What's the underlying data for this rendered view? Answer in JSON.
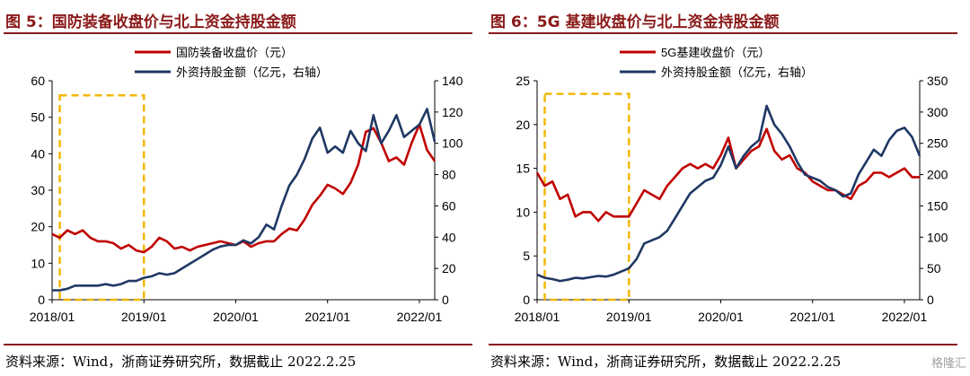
{
  "figures": [
    {
      "title": "图 5：国防装备收盘价与北上资金持股金额",
      "source": "资料来源：Wind，浙商证券研究所，数据截止 2022.2.25"
    },
    {
      "title": "图 6：5G 基建收盘价与北上资金持股金额",
      "source": "资料来源：Wind，浙商证券研究所，数据截止 2022.2.25"
    }
  ],
  "watermark": "格隆汇",
  "colors": {
    "price": "#c00000",
    "north": "#1f3864",
    "highlight": "#f2b705",
    "title": "#8b1a1a"
  },
  "chart_data": [
    {
      "type": "line",
      "x_ticks": [
        "2018/01",
        "2019/01",
        "2020/01",
        "2021/01",
        "2022/01"
      ],
      "x_range": [
        "2018/01",
        "2022/03"
      ],
      "left_axis": {
        "ylim": [
          0,
          60
        ],
        "ticks": [
          "0",
          "10",
          "20",
          "30",
          "40",
          "50",
          "60"
        ]
      },
      "right_axis": {
        "ylim": [
          0,
          140
        ],
        "ticks": [
          "0",
          "20",
          "40",
          "60",
          "80",
          "100",
          "120",
          "140"
        ]
      },
      "grid": false,
      "legend_position": "top-center",
      "highlight_box": {
        "x_from": "2018/02",
        "x_to": "2019/01",
        "y_from": 0,
        "y_to": 56,
        "axis": "left"
      },
      "series": [
        {
          "name": "国防装备收盘价（元）",
          "axis": "left",
          "color_key": "price",
          "points": [
            [
              "2018/01",
              18
            ],
            [
              "2018/02",
              17
            ],
            [
              "2018/03",
              19
            ],
            [
              "2018/04",
              18
            ],
            [
              "2018/05",
              19
            ],
            [
              "2018/06",
              17
            ],
            [
              "2018/07",
              16
            ],
            [
              "2018/08",
              16
            ],
            [
              "2018/09",
              15.5
            ],
            [
              "2018/10",
              14
            ],
            [
              "2018/11",
              15
            ],
            [
              "2018/12",
              13.5
            ],
            [
              "2019/01",
              13
            ],
            [
              "2019/02",
              14.5
            ],
            [
              "2019/03",
              17
            ],
            [
              "2019/04",
              16
            ],
            [
              "2019/05",
              14
            ],
            [
              "2019/06",
              14.5
            ],
            [
              "2019/07",
              13.5
            ],
            [
              "2019/08",
              14.5
            ],
            [
              "2019/09",
              15
            ],
            [
              "2019/10",
              15.5
            ],
            [
              "2019/11",
              16
            ],
            [
              "2019/12",
              15.5
            ],
            [
              "2020/01",
              15
            ],
            [
              "2020/02",
              16
            ],
            [
              "2020/03",
              14.5
            ],
            [
              "2020/04",
              15.5
            ],
            [
              "2020/05",
              16
            ],
            [
              "2020/06",
              16
            ],
            [
              "2020/07",
              18
            ],
            [
              "2020/08",
              19.5
            ],
            [
              "2020/09",
              19
            ],
            [
              "2020/10",
              22
            ],
            [
              "2020/11",
              26
            ],
            [
              "2020/12",
              28.5
            ],
            [
              "2021/01",
              31.5
            ],
            [
              "2021/02",
              30.5
            ],
            [
              "2021/03",
              29
            ],
            [
              "2021/04",
              32
            ],
            [
              "2021/05",
              37
            ],
            [
              "2021/06",
              46
            ],
            [
              "2021/07",
              47
            ],
            [
              "2021/08",
              43
            ],
            [
              "2021/09",
              38
            ],
            [
              "2021/10",
              39
            ],
            [
              "2021/11",
              37
            ],
            [
              "2021/12",
              43
            ],
            [
              "2022/01",
              48
            ],
            [
              "2022/02",
              41
            ],
            [
              "2022/03",
              38
            ]
          ]
        },
        {
          "name": "外资持股金额（亿元，右轴）",
          "axis": "right",
          "color_key": "north",
          "points": [
            [
              "2018/01",
              6
            ],
            [
              "2018/02",
              6
            ],
            [
              "2018/03",
              7
            ],
            [
              "2018/04",
              9
            ],
            [
              "2018/05",
              9
            ],
            [
              "2018/06",
              9
            ],
            [
              "2018/07",
              9
            ],
            [
              "2018/08",
              10
            ],
            [
              "2018/09",
              9
            ],
            [
              "2018/10",
              10
            ],
            [
              "2018/11",
              12
            ],
            [
              "2018/12",
              12
            ],
            [
              "2019/01",
              14
            ],
            [
              "2019/02",
              15
            ],
            [
              "2019/03",
              17
            ],
            [
              "2019/04",
              16
            ],
            [
              "2019/05",
              17
            ],
            [
              "2019/06",
              20
            ],
            [
              "2019/07",
              23
            ],
            [
              "2019/08",
              26
            ],
            [
              "2019/09",
              29
            ],
            [
              "2019/10",
              32
            ],
            [
              "2019/11",
              34
            ],
            [
              "2019/12",
              35
            ],
            [
              "2020/01",
              35
            ],
            [
              "2020/02",
              38
            ],
            [
              "2020/03",
              36
            ],
            [
              "2020/04",
              40
            ],
            [
              "2020/05",
              48
            ],
            [
              "2020/06",
              45
            ],
            [
              "2020/07",
              60
            ],
            [
              "2020/08",
              73
            ],
            [
              "2020/09",
              80
            ],
            [
              "2020/10",
              90
            ],
            [
              "2020/11",
              103
            ],
            [
              "2020/12",
              110
            ],
            [
              "2021/01",
              94
            ],
            [
              "2021/02",
              98
            ],
            [
              "2021/03",
              94
            ],
            [
              "2021/04",
              108
            ],
            [
              "2021/05",
              100
            ],
            [
              "2021/06",
              95
            ],
            [
              "2021/07",
              118
            ],
            [
              "2021/08",
              100
            ],
            [
              "2021/09",
              108
            ],
            [
              "2021/10",
              118
            ],
            [
              "2021/11",
              104
            ],
            [
              "2021/12",
              108
            ],
            [
              "2022/01",
              112
            ],
            [
              "2022/02",
              122
            ],
            [
              "2022/03",
              101
            ]
          ]
        }
      ]
    },
    {
      "type": "line",
      "x_ticks": [
        "2018/01",
        "2019/01",
        "2020/01",
        "2021/01",
        "2022/01"
      ],
      "x_range": [
        "2018/01",
        "2022/03"
      ],
      "left_axis": {
        "ylim": [
          0,
          25
        ],
        "ticks": [
          "0",
          "5",
          "10",
          "15",
          "20",
          "25"
        ]
      },
      "right_axis": {
        "ylim": [
          0,
          350
        ],
        "ticks": [
          "0",
          "50",
          "100",
          "150",
          "200",
          "250",
          "300",
          "350"
        ]
      },
      "grid": false,
      "legend_position": "top-center",
      "highlight_box": {
        "x_from": "2018/02",
        "x_to": "2019/01",
        "y_from": 0,
        "y_to": 23.5,
        "axis": "left"
      },
      "series": [
        {
          "name": "5G基建收盘价（元）",
          "axis": "left",
          "color_key": "price",
          "points": [
            [
              "2018/01",
              14.5
            ],
            [
              "2018/02",
              13
            ],
            [
              "2018/03",
              13.5
            ],
            [
              "2018/04",
              11.5
            ],
            [
              "2018/05",
              12
            ],
            [
              "2018/06",
              9.5
            ],
            [
              "2018/07",
              10
            ],
            [
              "2018/08",
              10
            ],
            [
              "2018/09",
              9
            ],
            [
              "2018/10",
              10
            ],
            [
              "2018/11",
              9.5
            ],
            [
              "2018/12",
              9.5
            ],
            [
              "2019/01",
              9.5
            ],
            [
              "2019/02",
              11
            ],
            [
              "2019/03",
              12.5
            ],
            [
              "2019/04",
              12
            ],
            [
              "2019/05",
              11.5
            ],
            [
              "2019/06",
              13
            ],
            [
              "2019/07",
              14
            ],
            [
              "2019/08",
              15
            ],
            [
              "2019/09",
              15.5
            ],
            [
              "2019/10",
              15
            ],
            [
              "2019/11",
              15.5
            ],
            [
              "2019/12",
              15
            ],
            [
              "2020/01",
              16.5
            ],
            [
              "2020/02",
              18.5
            ],
            [
              "2020/03",
              15
            ],
            [
              "2020/04",
              16
            ],
            [
              "2020/05",
              17
            ],
            [
              "2020/06",
              17.5
            ],
            [
              "2020/07",
              19.5
            ],
            [
              "2020/08",
              17
            ],
            [
              "2020/09",
              16
            ],
            [
              "2020/10",
              16.5
            ],
            [
              "2020/11",
              15
            ],
            [
              "2020/12",
              14.5
            ],
            [
              "2021/01",
              13.5
            ],
            [
              "2021/02",
              13
            ],
            [
              "2021/03",
              12.5
            ],
            [
              "2021/04",
              12.5
            ],
            [
              "2021/05",
              12
            ],
            [
              "2021/06",
              11.5
            ],
            [
              "2021/07",
              13
            ],
            [
              "2021/08",
              13.5
            ],
            [
              "2021/09",
              14.5
            ],
            [
              "2021/10",
              14.5
            ],
            [
              "2021/11",
              14
            ],
            [
              "2021/12",
              14.5
            ],
            [
              "2022/01",
              15
            ],
            [
              "2022/02",
              14
            ],
            [
              "2022/03",
              14
            ]
          ]
        },
        {
          "name": "外资持股金额（亿元，右轴）",
          "axis": "right",
          "color_key": "north",
          "points": [
            [
              "2018/01",
              40
            ],
            [
              "2018/02",
              35
            ],
            [
              "2018/03",
              33
            ],
            [
              "2018/04",
              30
            ],
            [
              "2018/05",
              32
            ],
            [
              "2018/06",
              35
            ],
            [
              "2018/07",
              34
            ],
            [
              "2018/08",
              36
            ],
            [
              "2018/09",
              38
            ],
            [
              "2018/10",
              37
            ],
            [
              "2018/11",
              40
            ],
            [
              "2018/12",
              45
            ],
            [
              "2019/01",
              50
            ],
            [
              "2019/02",
              65
            ],
            [
              "2019/03",
              90
            ],
            [
              "2019/04",
              95
            ],
            [
              "2019/05",
              100
            ],
            [
              "2019/06",
              110
            ],
            [
              "2019/07",
              130
            ],
            [
              "2019/08",
              150
            ],
            [
              "2019/09",
              170
            ],
            [
              "2019/10",
              180
            ],
            [
              "2019/11",
              190
            ],
            [
              "2019/12",
              195
            ],
            [
              "2020/01",
              215
            ],
            [
              "2020/02",
              245
            ],
            [
              "2020/03",
              210
            ],
            [
              "2020/04",
              230
            ],
            [
              "2020/05",
              245
            ],
            [
              "2020/06",
              255
            ],
            [
              "2020/07",
              310
            ],
            [
              "2020/08",
              280
            ],
            [
              "2020/09",
              265
            ],
            [
              "2020/10",
              245
            ],
            [
              "2020/11",
              220
            ],
            [
              "2020/12",
              200
            ],
            [
              "2021/01",
              195
            ],
            [
              "2021/02",
              190
            ],
            [
              "2021/03",
              180
            ],
            [
              "2021/04",
              175
            ],
            [
              "2021/05",
              165
            ],
            [
              "2021/06",
              170
            ],
            [
              "2021/07",
              200
            ],
            [
              "2021/08",
              220
            ],
            [
              "2021/09",
              240
            ],
            [
              "2021/10",
              230
            ],
            [
              "2021/11",
              255
            ],
            [
              "2021/12",
              270
            ],
            [
              "2022/01",
              275
            ],
            [
              "2022/02",
              260
            ],
            [
              "2022/03",
              230
            ]
          ]
        }
      ]
    }
  ]
}
